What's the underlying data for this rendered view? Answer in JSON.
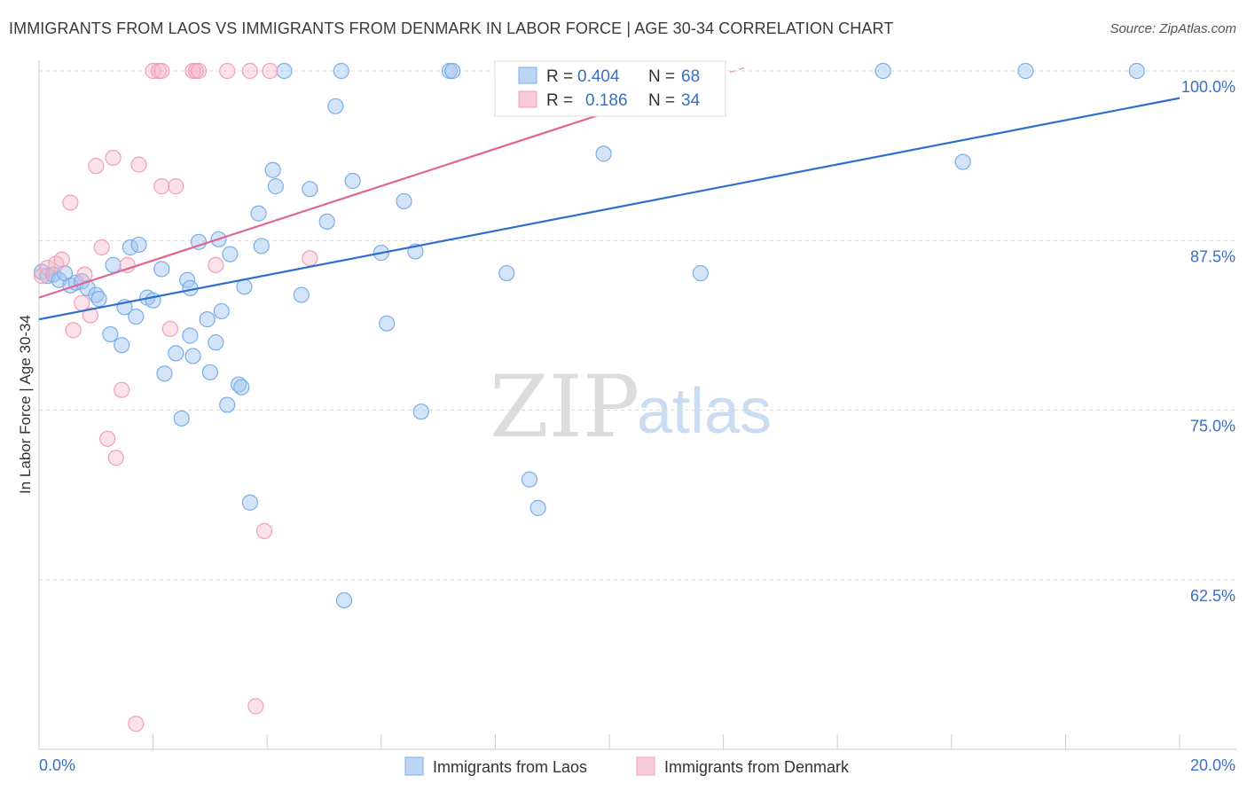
{
  "title": "IMMIGRANTS FROM LAOS VS IMMIGRANTS FROM DENMARK IN LABOR FORCE | AGE 30-34 CORRELATION CHART",
  "source": "Source: ZipAtlas.com",
  "watermark": {
    "zip": "ZIP",
    "atlas": "atlas"
  },
  "chart_data": {
    "type": "scatter",
    "xlabel": "",
    "ylabel": "In Labor Force | Age 30-34",
    "xlim": [
      0,
      20
    ],
    "ylim": [
      52,
      100.5
    ],
    "x_tick_labels": {
      "min": "0.0%",
      "max": "20.0%"
    },
    "y_ticks": [
      {
        "value": 100.0,
        "label": "100.0%"
      },
      {
        "value": 87.5,
        "label": "87.5%"
      },
      {
        "value": 75.0,
        "label": "75.0%"
      },
      {
        "value": 62.5,
        "label": "62.5%"
      }
    ],
    "legend": {
      "laos": {
        "r_label": "R =",
        "r_value": "0.404",
        "n_label": "N =",
        "n_value": "68"
      },
      "denmark": {
        "r_label": "R =",
        "r_value": "0.186",
        "n_label": "N =",
        "n_value": "34"
      }
    },
    "series": [
      {
        "name": "Immigrants from Laos",
        "color": "#7aaee8",
        "line_color": "#2f6fcb",
        "trend": {
          "x": [
            0,
            20
          ],
          "y": [
            81.7,
            98.0
          ]
        },
        "points": [
          [
            0.05,
            85.2
          ],
          [
            0.15,
            84.9
          ],
          [
            0.25,
            85.0
          ],
          [
            0.35,
            84.6
          ],
          [
            0.45,
            85.1
          ],
          [
            0.55,
            84.2
          ],
          [
            0.65,
            84.4
          ],
          [
            0.75,
            84.5
          ],
          [
            0.85,
            84.0
          ],
          [
            1.0,
            83.5
          ],
          [
            1.05,
            83.2
          ],
          [
            1.3,
            85.7
          ],
          [
            1.5,
            82.6
          ],
          [
            1.6,
            87.0
          ],
          [
            1.75,
            87.2
          ],
          [
            1.9,
            83.3
          ],
          [
            2.0,
            83.1
          ],
          [
            2.15,
            85.4
          ],
          [
            2.2,
            77.7
          ],
          [
            2.4,
            79.2
          ],
          [
            2.5,
            74.4
          ],
          [
            2.6,
            84.6
          ],
          [
            2.7,
            79.0
          ],
          [
            2.65,
            84.0
          ],
          [
            2.65,
            80.5
          ],
          [
            1.25,
            80.6
          ],
          [
            1.45,
            79.8
          ],
          [
            1.7,
            81.9
          ],
          [
            2.8,
            87.4
          ],
          [
            2.95,
            81.7
          ],
          [
            3.0,
            77.8
          ],
          [
            3.15,
            87.6
          ],
          [
            3.1,
            80.0
          ],
          [
            3.2,
            82.3
          ],
          [
            3.3,
            75.4
          ],
          [
            3.35,
            86.5
          ],
          [
            3.5,
            76.9
          ],
          [
            3.55,
            76.7
          ],
          [
            3.6,
            84.1
          ],
          [
            3.7,
            68.2
          ],
          [
            3.85,
            89.5
          ],
          [
            3.9,
            87.1
          ],
          [
            4.1,
            92.7
          ],
          [
            4.15,
            91.5
          ],
          [
            4.3,
            100.0
          ],
          [
            4.6,
            83.5
          ],
          [
            4.75,
            91.3
          ],
          [
            5.05,
            88.9
          ],
          [
            5.2,
            97.4
          ],
          [
            5.3,
            100.0
          ],
          [
            5.35,
            61.0
          ],
          [
            5.5,
            91.9
          ],
          [
            6.0,
            86.6
          ],
          [
            6.1,
            81.4
          ],
          [
            6.4,
            90.4
          ],
          [
            6.6,
            86.7
          ],
          [
            6.7,
            74.9
          ],
          [
            7.2,
            100.0
          ],
          [
            7.25,
            100.0
          ],
          [
            8.2,
            85.1
          ],
          [
            8.6,
            69.9
          ],
          [
            8.75,
            67.8
          ],
          [
            9.9,
            93.9
          ],
          [
            11.6,
            85.1
          ],
          [
            14.8,
            100.0
          ],
          [
            16.2,
            93.3
          ],
          [
            17.3,
            100.0
          ],
          [
            19.25,
            100.0
          ]
        ]
      },
      {
        "name": "Immigrants from Denmark",
        "color": "#f1a0b8",
        "line_color": "#e0658f",
        "trend": {
          "x": [
            0,
            10
          ],
          "y": [
            83.3,
            97.0
          ]
        },
        "points": [
          [
            0.05,
            84.9
          ],
          [
            0.15,
            85.5
          ],
          [
            0.3,
            85.8
          ],
          [
            0.4,
            86.1
          ],
          [
            0.55,
            90.3
          ],
          [
            0.6,
            80.9
          ],
          [
            0.75,
            82.9
          ],
          [
            0.8,
            85.0
          ],
          [
            0.9,
            82.0
          ],
          [
            1.0,
            93.0
          ],
          [
            1.1,
            87.0
          ],
          [
            1.2,
            72.9
          ],
          [
            1.3,
            93.6
          ],
          [
            1.35,
            71.5
          ],
          [
            1.45,
            76.5
          ],
          [
            1.55,
            85.7
          ],
          [
            1.7,
            51.9
          ],
          [
            1.75,
            93.1
          ],
          [
            2.0,
            100.0
          ],
          [
            2.1,
            100.0
          ],
          [
            2.15,
            100.0
          ],
          [
            2.15,
            91.5
          ],
          [
            2.3,
            81.0
          ],
          [
            2.4,
            91.5
          ],
          [
            2.7,
            100.0
          ],
          [
            2.75,
            100.0
          ],
          [
            2.8,
            100.0
          ],
          [
            3.1,
            85.7
          ],
          [
            3.3,
            100.0
          ],
          [
            3.7,
            100.0
          ],
          [
            3.8,
            53.2
          ],
          [
            3.95,
            66.1
          ],
          [
            4.05,
            100.0
          ],
          [
            4.75,
            86.2
          ]
        ]
      }
    ]
  }
}
